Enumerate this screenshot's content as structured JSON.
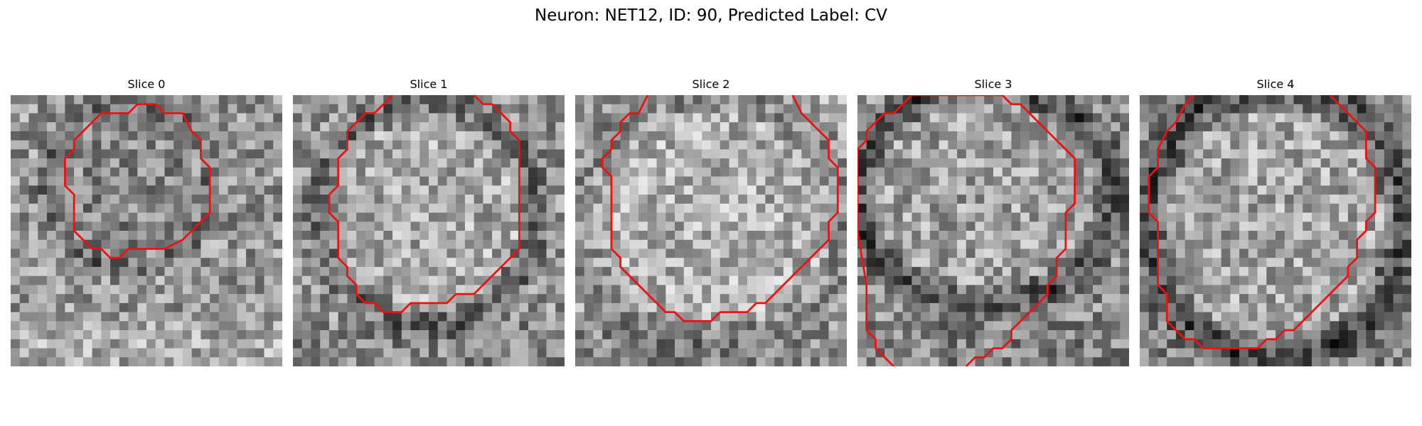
{
  "figure": {
    "title": "Neuron: NET12, ID: 90, Predicted Label: CV"
  },
  "panels": [
    {
      "title": "Slice 0"
    },
    {
      "title": "Slice 1"
    },
    {
      "title": "Slice 2"
    },
    {
      "title": "Slice 3"
    },
    {
      "title": "Slice 4"
    }
  ],
  "colors": {
    "contour": "#ee1111",
    "colormap": "grayscale"
  }
}
